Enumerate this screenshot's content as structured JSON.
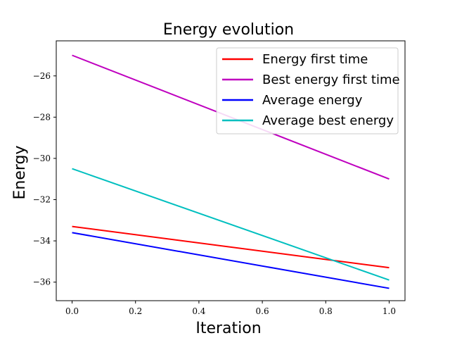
{
  "chart_data": {
    "type": "line",
    "title": "Energy evolution",
    "xlabel": "Iteration",
    "ylabel": "Energy",
    "xlim": [
      -0.05,
      1.05
    ],
    "ylim": [
      -36.9,
      -24.3
    ],
    "xticks": [
      0.0,
      0.2,
      0.4,
      0.6,
      0.8,
      1.0
    ],
    "xtick_labels": [
      "0.0",
      "0.2",
      "0.4",
      "0.6",
      "0.8",
      "1.0"
    ],
    "yticks": [
      -36,
      -34,
      -32,
      -30,
      -28,
      -26
    ],
    "ytick_labels": [
      "−36",
      "−34",
      "−32",
      "−30",
      "−28",
      "−26"
    ],
    "grid": false,
    "legend_position": "top-right",
    "x": [
      0,
      1
    ],
    "series": [
      {
        "name": "Energy first time",
        "color": "#ff0000",
        "values": [
          -33.3,
          -35.3
        ]
      },
      {
        "name": "Best energy first time",
        "color": "#bf00bf",
        "values": [
          -25.0,
          -31.0
        ]
      },
      {
        "name": "Average energy",
        "color": "#0000ff",
        "values": [
          -33.6,
          -36.3
        ]
      },
      {
        "name": "Average best energy",
        "color": "#00bfbf",
        "values": [
          -30.5,
          -35.9
        ]
      }
    ]
  }
}
